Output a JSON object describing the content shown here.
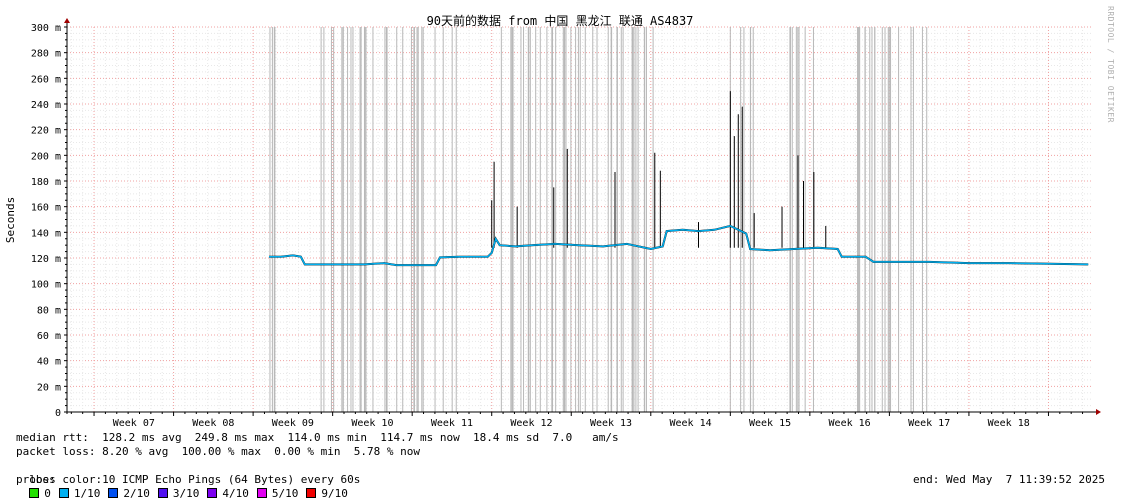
{
  "chart_data": {
    "type": "line",
    "title": "90天前的数据 from 中国 黑龙江 联通 AS4837",
    "ylabel": "Seconds",
    "ylim": [
      0,
      0.3
    ],
    "y_ticks": [
      {
        "value": 0,
        "label": "0"
      },
      {
        "value": 0.02,
        "label": "20 m"
      },
      {
        "value": 0.04,
        "label": "40 m"
      },
      {
        "value": 0.06,
        "label": "60 m"
      },
      {
        "value": 0.08,
        "label": "80 m"
      },
      {
        "value": 0.1,
        "label": "100 m"
      },
      {
        "value": 0.12,
        "label": "120 m"
      },
      {
        "value": 0.14,
        "label": "140 m"
      },
      {
        "value": 0.16,
        "label": "160 m"
      },
      {
        "value": 0.18,
        "label": "180 m"
      },
      {
        "value": 0.2,
        "label": "200 m"
      },
      {
        "value": 0.22,
        "label": "220 m"
      },
      {
        "value": 0.24,
        "label": "240 m"
      },
      {
        "value": 0.26,
        "label": "260 m"
      },
      {
        "value": 0.28,
        "label": "280 m"
      },
      {
        "value": 0.3,
        "label": "300 m"
      }
    ],
    "x_tick_labels": [
      "Week 07",
      "Week 08",
      "Week 09",
      "Week 10",
      "Week 11",
      "Week 12",
      "Week 13",
      "Week 14",
      "Week 15",
      "Week 16",
      "Week 17",
      "Week 18"
    ],
    "x_week_range": [
      6.66,
      19.56
    ],
    "series": [
      {
        "kind": "median_rtt_ms",
        "color": "#00b0f0",
        "points": [
          [
            9.2,
            121
          ],
          [
            9.35,
            121
          ],
          [
            9.5,
            122
          ],
          [
            9.6,
            121
          ],
          [
            9.65,
            115
          ],
          [
            10.0,
            115
          ],
          [
            10.4,
            115
          ],
          [
            10.65,
            116
          ],
          [
            10.8,
            114.5
          ],
          [
            11.1,
            114.5
          ],
          [
            11.3,
            114.5
          ],
          [
            11.35,
            120.5
          ],
          [
            11.6,
            121
          ],
          [
            11.95,
            121
          ],
          [
            12.0,
            124
          ],
          [
            12.05,
            135
          ],
          [
            12.1,
            130
          ],
          [
            12.3,
            129
          ],
          [
            12.5,
            130
          ],
          [
            12.8,
            131
          ],
          [
            13.1,
            130
          ],
          [
            13.4,
            129
          ],
          [
            13.7,
            131
          ],
          [
            14.0,
            127
          ],
          [
            14.15,
            129
          ],
          [
            14.2,
            141
          ],
          [
            14.4,
            142
          ],
          [
            14.6,
            141
          ],
          [
            14.8,
            142
          ],
          [
            15.0,
            145
          ],
          [
            15.2,
            139
          ],
          [
            15.25,
            127
          ],
          [
            15.5,
            126
          ],
          [
            15.8,
            127
          ],
          [
            16.1,
            128
          ],
          [
            16.35,
            127
          ],
          [
            16.4,
            121
          ],
          [
            16.7,
            121
          ],
          [
            16.8,
            117
          ],
          [
            17.1,
            117
          ],
          [
            17.5,
            117
          ],
          [
            18.0,
            116
          ],
          [
            18.5,
            116
          ],
          [
            19.0,
            115.5
          ],
          [
            19.5,
            115
          ]
        ]
      }
    ],
    "rtt_spikes_ms": [
      [
        12.0,
        165
      ],
      [
        12.03,
        195
      ],
      [
        12.32,
        160
      ],
      [
        12.78,
        175
      ],
      [
        12.95,
        205
      ],
      [
        13.55,
        187
      ],
      [
        14.05,
        202
      ],
      [
        14.12,
        188
      ],
      [
        14.6,
        148
      ],
      [
        15.0,
        250
      ],
      [
        15.05,
        215
      ],
      [
        15.1,
        232
      ],
      [
        15.15,
        238
      ],
      [
        15.3,
        155
      ],
      [
        15.65,
        160
      ],
      [
        15.85,
        200
      ],
      [
        15.92,
        180
      ],
      [
        16.05,
        187
      ],
      [
        16.2,
        145
      ]
    ],
    "loss_color_legend": [
      {
        "label": "0",
        "color": "#22e000"
      },
      {
        "label": "1/10",
        "color": "#00b0f0"
      },
      {
        "label": "2/10",
        "color": "#0050f0"
      },
      {
        "label": "3/10",
        "color": "#5010f0"
      },
      {
        "label": "4/10",
        "color": "#7c00f0"
      },
      {
        "label": "5/10",
        "color": "#e000f0"
      },
      {
        "label": "9/10",
        "color": "#f00000"
      }
    ],
    "grid": true,
    "legend_placement": "bottom"
  },
  "stats": {
    "median_rtt": "median rtt:  128.2 ms avg  249.8 ms max  114.0 ms min  114.7 ms now  18.4 ms sd  7.0   am/s",
    "packet_loss": "packet loss: 8.20 % avg  100.00 % max  0.00 % min  5.78 % now",
    "loss_color_label": "loss color:",
    "probe": "probe:       10 ICMP Echo Pings (64 Bytes) every 60s",
    "end": "end: Wed May  7 11:39:52 2025"
  },
  "watermark": "RRDTOOL / TOBI OETIKER"
}
